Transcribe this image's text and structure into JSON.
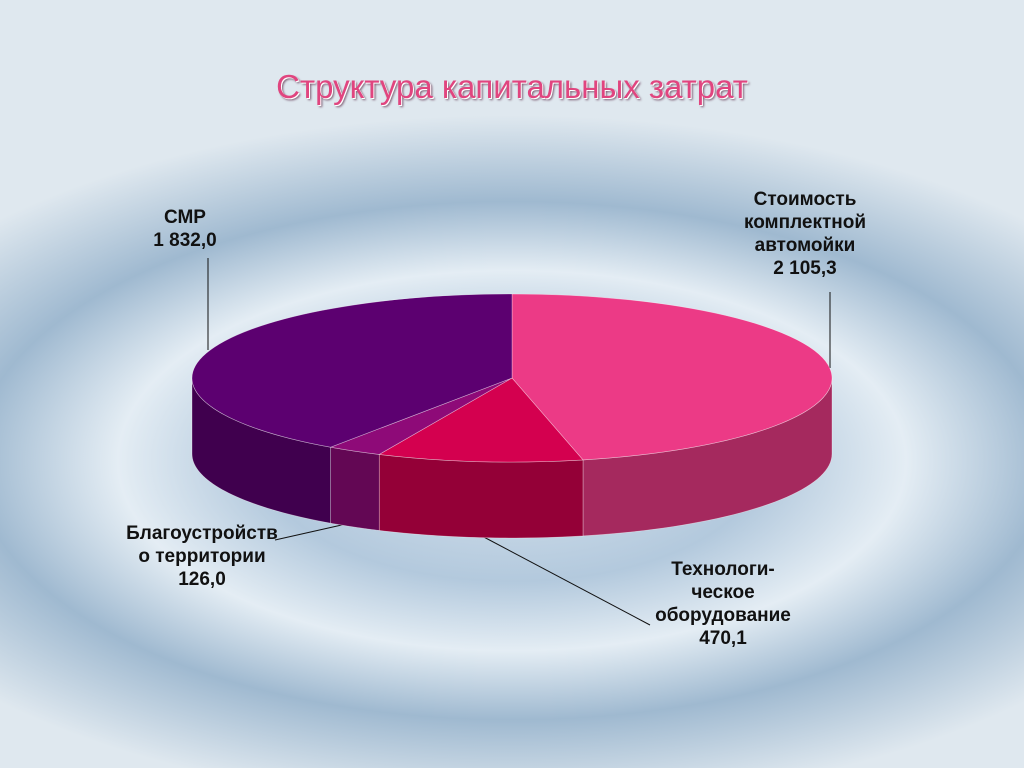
{
  "chart_data": {
    "type": "pie3d",
    "title": "Структура капитальных затрат",
    "categories": [
      "Стоимость комплектной автомойки",
      "Технологи-ческое оборудование",
      "Благоустройство территории",
      "СМР"
    ],
    "values": [
      2105.3,
      470.1,
      126.0,
      1832.0
    ],
    "value_labels": [
      "2 105,3",
      "470,1",
      "126,0",
      "1 832,0"
    ],
    "colors": [
      "#ec3a86",
      "#d4004f",
      "#8e0a78",
      "#5c0070"
    ]
  }
}
